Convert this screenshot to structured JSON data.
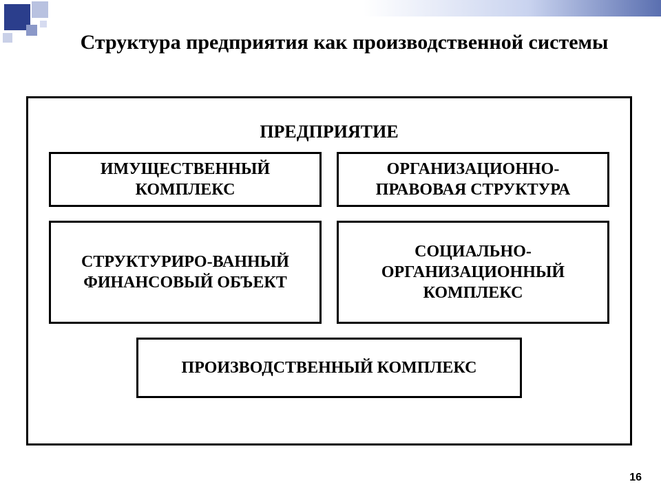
{
  "slide": {
    "title": "Структура предприятия как производственной системы",
    "page_number": "16"
  },
  "diagram": {
    "type": "infographic",
    "outer_label": "ПРЕДПРИЯТИЕ",
    "boxes": {
      "top_left": "ИМУЩЕСТВЕННЫЙ КОМПЛЕКС",
      "top_right": "ОРГАНИЗАЦИОННО-ПРАВОВАЯ СТРУКТУРА",
      "mid_left": "СТРУКТУРИРО-ВАННЫЙ ФИНАНСОВЫЙ ОБЪЕКТ",
      "mid_right": "СОЦИАЛЬНО-ОРГАНИЗАЦИОННЫЙ КОМПЛЕКС",
      "bottom": "ПРОИЗВОДСТВЕННЫЙ КОМПЛЕКС"
    },
    "border_color": "#000000",
    "border_width": 3,
    "background_color": "#ffffff",
    "font_family": "Times New Roman",
    "label_fontsize": 24,
    "title_fontsize": 30
  },
  "decoration": {
    "gradient_start": "#ffffff",
    "gradient_end": "#5a6fb0",
    "square_colors": [
      "#2b3e8c",
      "#b9c2e0",
      "#8b98c8",
      "#c9d0e8",
      "#d6dbf0"
    ]
  }
}
